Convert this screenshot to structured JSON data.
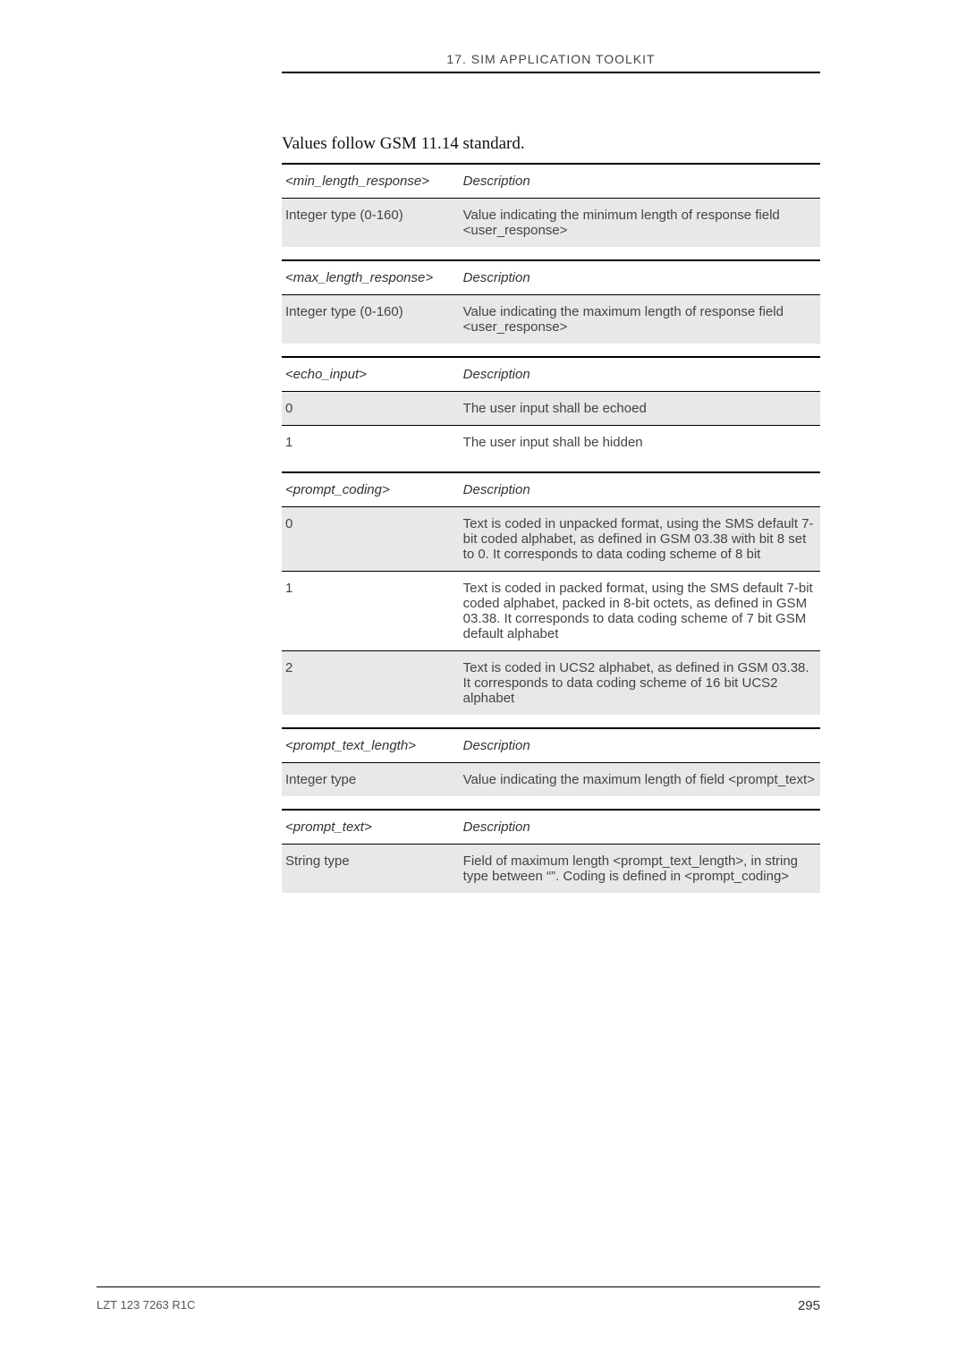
{
  "header": {
    "title": "17. SIM APPLICATION TOOLKIT"
  },
  "lead": "Values follow GSM 11.14 standard.",
  "tables": {
    "min_len": {
      "h1": "<min_length_response>",
      "h2": "Description",
      "r1c1": "Integer type (0-160)",
      "r1c2": "Value indicating the minimum length of response field <user_response>"
    },
    "max_len": {
      "h1": "<max_length_response>",
      "h2": "Description",
      "r1c1": "Integer type (0-160)",
      "r1c2": "Value indicating the maximum length of response field <user_response>"
    },
    "echo": {
      "h1": "<echo_input>",
      "h2": "Description",
      "r1c1": "0",
      "r1c2": "The user input shall be echoed",
      "r2c1": "1",
      "r2c2": "The user input shall be hidden"
    },
    "coding": {
      "h1": "<prompt_coding>",
      "h2": "Description",
      "r1c1": "0",
      "r1c2": "Text is coded in unpacked format, using the SMS default 7-bit coded alphabet, as defined in GSM 03.38 with bit 8 set to 0.  It corresponds to data coding scheme of 8 bit",
      "r2c1": "1",
      "r2c2": "Text is coded in packed format, using the SMS default 7-bit coded alphabet, packed in 8-bit octets, as defined in GSM 03.38. It corresponds to data coding scheme of 7 bit GSM default alphabet",
      "r3c1": "2",
      "r3c2": "Text is coded in UCS2 alphabet, as defined in GSM 03.38. It corresponds to data coding scheme of 16 bit UCS2 alphabet"
    },
    "ptl": {
      "h1": "<prompt_text_length>",
      "h2": "Description",
      "r1c1": "Integer type",
      "r1c2": "Value indicating the maximum length of field <prompt_text>"
    },
    "pt": {
      "h1": "<prompt_text>",
      "h2": "Description",
      "r1c1": "String type",
      "r1c2": "Field of maximum length <prompt_text_length>, in string type between “”. Coding is defined in <prompt_coding>"
    }
  },
  "footer": {
    "doc_id": "LZT 123 7263 R1C",
    "page": "295"
  }
}
